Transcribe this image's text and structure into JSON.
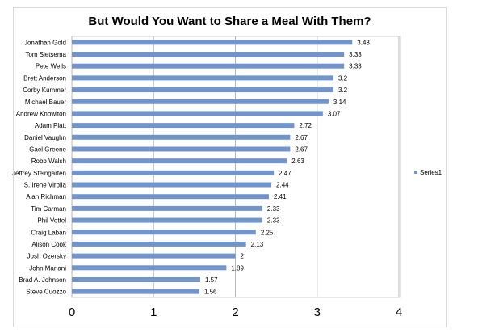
{
  "chart_data": {
    "type": "bar",
    "orientation": "horizontal",
    "title": "But Would You Want to Share a Meal With Them?",
    "categories": [
      "Jonathan Gold",
      "Tom Sietsema",
      "Pete Wells",
      "Brett Anderson",
      "Corby Kummer",
      "Michael Bauer",
      "Andrew Knowlton",
      "Adam Platt",
      "Daniel Vaughn",
      "Gael Greene",
      "Robb Walsh",
      "Jeffrey Steingarten",
      "S. Irene Virbila",
      "Alan Richman",
      "Tim Carman",
      "Phil Vettel",
      "Craig Laban",
      "Alison Cook",
      "Josh Ozersky",
      "John Mariani",
      "Brad A. Johnson",
      "Steve Cuozzo"
    ],
    "series": [
      {
        "name": "Series1",
        "values": [
          3.43,
          3.33,
          3.33,
          3.2,
          3.2,
          3.14,
          3.07,
          2.72,
          2.67,
          2.67,
          2.63,
          2.47,
          2.44,
          2.41,
          2.33,
          2.33,
          2.25,
          2.13,
          2,
          1.89,
          1.57,
          1.56
        ],
        "color": "#7294cc"
      }
    ],
    "xlim": [
      0,
      4
    ],
    "xticks": [
      "0",
      "1",
      "2",
      "3",
      "4"
    ],
    "grid": true,
    "legend": "right",
    "xlabel": "",
    "ylabel": ""
  }
}
